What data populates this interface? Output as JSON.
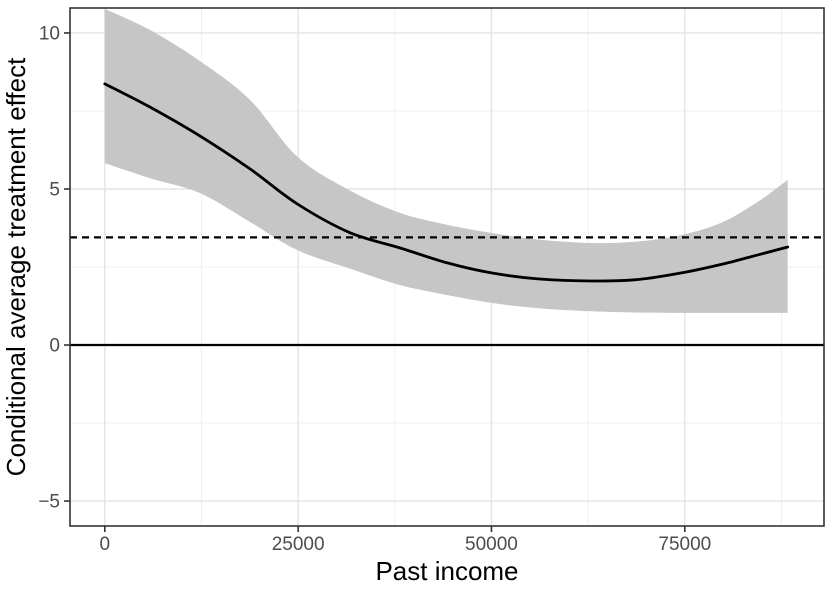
{
  "chart_data": {
    "type": "line",
    "title": "",
    "xlabel": "Past income",
    "ylabel": "Conditional average treatment effect",
    "xlim": [
      -4500,
      93000
    ],
    "ylim": [
      -5.8,
      10.8
    ],
    "grid": true,
    "legend": false,
    "x_ticks": {
      "values": [
        0,
        25000,
        50000,
        75000
      ],
      "labels": [
        "0",
        "25000",
        "50000",
        "75000"
      ]
    },
    "y_ticks": {
      "values": [
        -5,
        0,
        5,
        10
      ],
      "labels": [
        "−5",
        "0",
        "5",
        "10"
      ]
    },
    "x_minor": [
      12500,
      37500,
      62500,
      87500
    ],
    "y_minor": [
      -2.5,
      2.5,
      7.5
    ],
    "reference_lines": [
      {
        "name": "dashed-reference-line",
        "orientation": "horizontal",
        "value": 3.45,
        "style": "dashed"
      },
      {
        "name": "zero-line",
        "orientation": "horizontal",
        "value": 0,
        "style": "solid"
      }
    ],
    "series": [
      {
        "name": "cate-estimate",
        "x": [
          0,
          5800,
          12300,
          18800,
          24900,
          31700,
          38200,
          44300,
          50000,
          56000,
          63000,
          69000,
          75000,
          80000,
          84500,
          88300
        ],
        "y": [
          8.37,
          7.63,
          6.7,
          5.64,
          4.52,
          3.6,
          3.11,
          2.63,
          2.31,
          2.12,
          2.05,
          2.1,
          2.33,
          2.6,
          2.89,
          3.14
        ]
      }
    ],
    "confidence_band": {
      "name": "confidence-band",
      "x": [
        0,
        5800,
        12300,
        18800,
        24900,
        31700,
        38200,
        44300,
        50000,
        56000,
        63000,
        69000,
        75000,
        80000,
        84500,
        88300
      ],
      "upper": [
        10.77,
        10.1,
        9.1,
        7.85,
        6.03,
        4.95,
        4.23,
        3.85,
        3.59,
        3.38,
        3.27,
        3.32,
        3.55,
        3.95,
        4.6,
        5.29
      ],
      "lower": [
        5.83,
        5.35,
        4.87,
        3.94,
        3.04,
        2.45,
        1.92,
        1.6,
        1.35,
        1.18,
        1.08,
        1.04,
        1.03,
        1.03,
        1.03,
        1.03
      ]
    }
  },
  "style": {
    "background": "#ffffff",
    "panel_border": "#333333",
    "grid_major": "#e4e4e4",
    "grid_minor": "#efefef",
    "band_fill": "#c6c6c6",
    "line_color": "#000000",
    "reference_color": "#000000",
    "tick_mark_color": "#333333",
    "tick_label_color": "#4d4d4d",
    "title_color": "#000000"
  }
}
